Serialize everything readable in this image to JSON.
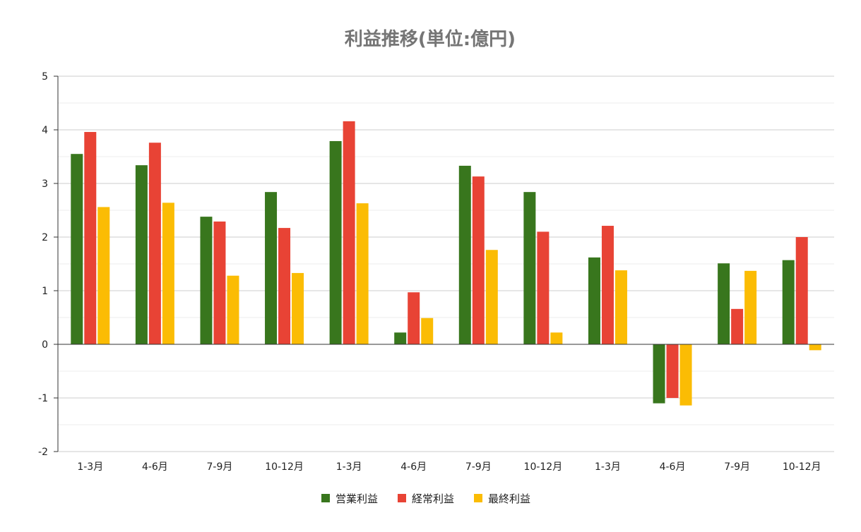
{
  "chart_data": {
    "type": "bar",
    "title": "利益推移(単位:億円)",
    "categories": [
      "1-3月",
      "4-6月",
      "7-9月",
      "10-12月",
      "1-3月",
      "4-6月",
      "7-9月",
      "10-12月",
      "1-3月",
      "4-6月",
      "7-9月",
      "10-12月"
    ],
    "series": [
      {
        "name": "営業利益",
        "color": "#38761d",
        "values": [
          3.55,
          3.34,
          2.38,
          2.84,
          3.79,
          0.22,
          3.33,
          2.84,
          1.62,
          -1.1,
          1.51,
          1.57
        ]
      },
      {
        "name": "経常利益",
        "color": "#e84335",
        "values": [
          3.96,
          3.76,
          2.29,
          2.17,
          4.16,
          0.97,
          3.13,
          2.1,
          2.21,
          -1.0,
          0.66,
          2.0
        ]
      },
      {
        "name": "最終利益",
        "color": "#fbbc04",
        "values": [
          2.56,
          2.64,
          1.28,
          1.33,
          2.63,
          0.49,
          1.76,
          0.22,
          1.38,
          -1.14,
          1.37,
          -0.11
        ]
      }
    ],
    "ylim": [
      -2,
      5
    ],
    "yticks": [
      5,
      4,
      3,
      2,
      1,
      0,
      -1,
      -2
    ],
    "xlabel": "",
    "ylabel": "",
    "grid": true,
    "minor_grid": true,
    "legend_position": "bottom"
  }
}
